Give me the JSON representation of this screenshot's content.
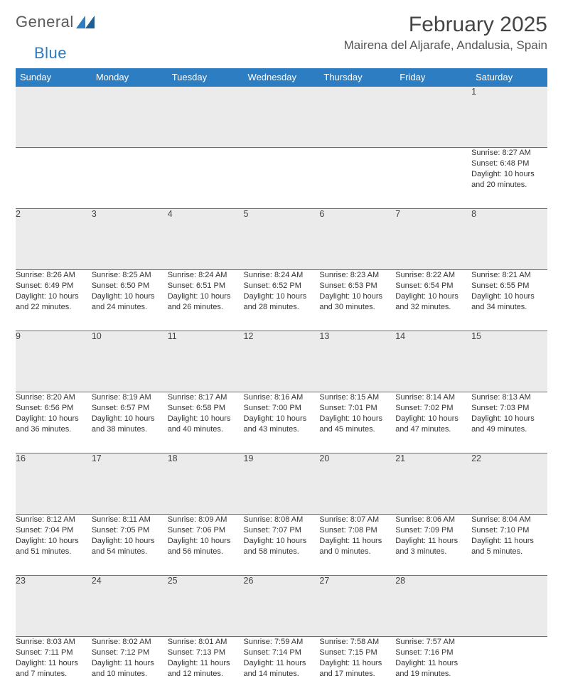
{
  "logo": {
    "text1": "General",
    "text2": "Blue"
  },
  "title": "February 2025",
  "location": "Mairena del Aljarafe, Andalusia, Spain",
  "colors": {
    "header_bg": "#2c7dc1",
    "header_fg": "#ffffff",
    "daynum_bg": "#ebebeb",
    "border": "#2c7dc1",
    "text": "#333333"
  },
  "font": {
    "family": "Arial",
    "title_size": 30,
    "location_size": 17,
    "header_size": 13,
    "daynum_size": 12.5,
    "body_size": 11
  },
  "headers": [
    "Sunday",
    "Monday",
    "Tuesday",
    "Wednesday",
    "Thursday",
    "Friday",
    "Saturday"
  ],
  "weeks": [
    [
      null,
      null,
      null,
      null,
      null,
      null,
      {
        "n": "1",
        "sr": "Sunrise: 8:27 AM",
        "ss": "Sunset: 6:48 PM",
        "dl": "Daylight: 10 hours and 20 minutes."
      }
    ],
    [
      {
        "n": "2",
        "sr": "Sunrise: 8:26 AM",
        "ss": "Sunset: 6:49 PM",
        "dl": "Daylight: 10 hours and 22 minutes."
      },
      {
        "n": "3",
        "sr": "Sunrise: 8:25 AM",
        "ss": "Sunset: 6:50 PM",
        "dl": "Daylight: 10 hours and 24 minutes."
      },
      {
        "n": "4",
        "sr": "Sunrise: 8:24 AM",
        "ss": "Sunset: 6:51 PM",
        "dl": "Daylight: 10 hours and 26 minutes."
      },
      {
        "n": "5",
        "sr": "Sunrise: 8:24 AM",
        "ss": "Sunset: 6:52 PM",
        "dl": "Daylight: 10 hours and 28 minutes."
      },
      {
        "n": "6",
        "sr": "Sunrise: 8:23 AM",
        "ss": "Sunset: 6:53 PM",
        "dl": "Daylight: 10 hours and 30 minutes."
      },
      {
        "n": "7",
        "sr": "Sunrise: 8:22 AM",
        "ss": "Sunset: 6:54 PM",
        "dl": "Daylight: 10 hours and 32 minutes."
      },
      {
        "n": "8",
        "sr": "Sunrise: 8:21 AM",
        "ss": "Sunset: 6:55 PM",
        "dl": "Daylight: 10 hours and 34 minutes."
      }
    ],
    [
      {
        "n": "9",
        "sr": "Sunrise: 8:20 AM",
        "ss": "Sunset: 6:56 PM",
        "dl": "Daylight: 10 hours and 36 minutes."
      },
      {
        "n": "10",
        "sr": "Sunrise: 8:19 AM",
        "ss": "Sunset: 6:57 PM",
        "dl": "Daylight: 10 hours and 38 minutes."
      },
      {
        "n": "11",
        "sr": "Sunrise: 8:17 AM",
        "ss": "Sunset: 6:58 PM",
        "dl": "Daylight: 10 hours and 40 minutes."
      },
      {
        "n": "12",
        "sr": "Sunrise: 8:16 AM",
        "ss": "Sunset: 7:00 PM",
        "dl": "Daylight: 10 hours and 43 minutes."
      },
      {
        "n": "13",
        "sr": "Sunrise: 8:15 AM",
        "ss": "Sunset: 7:01 PM",
        "dl": "Daylight: 10 hours and 45 minutes."
      },
      {
        "n": "14",
        "sr": "Sunrise: 8:14 AM",
        "ss": "Sunset: 7:02 PM",
        "dl": "Daylight: 10 hours and 47 minutes."
      },
      {
        "n": "15",
        "sr": "Sunrise: 8:13 AM",
        "ss": "Sunset: 7:03 PM",
        "dl": "Daylight: 10 hours and 49 minutes."
      }
    ],
    [
      {
        "n": "16",
        "sr": "Sunrise: 8:12 AM",
        "ss": "Sunset: 7:04 PM",
        "dl": "Daylight: 10 hours and 51 minutes."
      },
      {
        "n": "17",
        "sr": "Sunrise: 8:11 AM",
        "ss": "Sunset: 7:05 PM",
        "dl": "Daylight: 10 hours and 54 minutes."
      },
      {
        "n": "18",
        "sr": "Sunrise: 8:09 AM",
        "ss": "Sunset: 7:06 PM",
        "dl": "Daylight: 10 hours and 56 minutes."
      },
      {
        "n": "19",
        "sr": "Sunrise: 8:08 AM",
        "ss": "Sunset: 7:07 PM",
        "dl": "Daylight: 10 hours and 58 minutes."
      },
      {
        "n": "20",
        "sr": "Sunrise: 8:07 AM",
        "ss": "Sunset: 7:08 PM",
        "dl": "Daylight: 11 hours and 0 minutes."
      },
      {
        "n": "21",
        "sr": "Sunrise: 8:06 AM",
        "ss": "Sunset: 7:09 PM",
        "dl": "Daylight: 11 hours and 3 minutes."
      },
      {
        "n": "22",
        "sr": "Sunrise: 8:04 AM",
        "ss": "Sunset: 7:10 PM",
        "dl": "Daylight: 11 hours and 5 minutes."
      }
    ],
    [
      {
        "n": "23",
        "sr": "Sunrise: 8:03 AM",
        "ss": "Sunset: 7:11 PM",
        "dl": "Daylight: 11 hours and 7 minutes."
      },
      {
        "n": "24",
        "sr": "Sunrise: 8:02 AM",
        "ss": "Sunset: 7:12 PM",
        "dl": "Daylight: 11 hours and 10 minutes."
      },
      {
        "n": "25",
        "sr": "Sunrise: 8:01 AM",
        "ss": "Sunset: 7:13 PM",
        "dl": "Daylight: 11 hours and 12 minutes."
      },
      {
        "n": "26",
        "sr": "Sunrise: 7:59 AM",
        "ss": "Sunset: 7:14 PM",
        "dl": "Daylight: 11 hours and 14 minutes."
      },
      {
        "n": "27",
        "sr": "Sunrise: 7:58 AM",
        "ss": "Sunset: 7:15 PM",
        "dl": "Daylight: 11 hours and 17 minutes."
      },
      {
        "n": "28",
        "sr": "Sunrise: 7:57 AM",
        "ss": "Sunset: 7:16 PM",
        "dl": "Daylight: 11 hours and 19 minutes."
      },
      null
    ]
  ]
}
